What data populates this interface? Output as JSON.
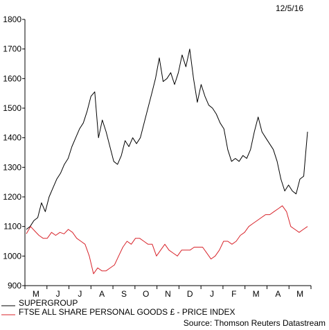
{
  "chart_data": {
    "type": "line",
    "date_label": "12/5/16",
    "source": "Source: Thomson Reuters Datastream",
    "x_ticks": [
      "M",
      "J",
      "J",
      "A",
      "S",
      "O",
      "N",
      "D",
      "J",
      "F",
      "M",
      "A",
      "M"
    ],
    "y_ticks": [
      900,
      1000,
      1100,
      1200,
      1300,
      1400,
      1500,
      1600,
      1700,
      1800
    ],
    "ylim": [
      900,
      1800
    ],
    "grid": false,
    "legend_position": "bottom-left",
    "series": [
      {
        "name": "SUPERGROUP",
        "color": "#000000",
        "values": [
          1090,
          1100,
          1120,
          1130,
          1180,
          1150,
          1200,
          1230,
          1260,
          1280,
          1310,
          1330,
          1370,
          1400,
          1430,
          1450,
          1490,
          1540,
          1555,
          1400,
          1460,
          1420,
          1370,
          1320,
          1310,
          1340,
          1390,
          1370,
          1400,
          1380,
          1400,
          1450,
          1500,
          1550,
          1600,
          1670,
          1590,
          1600,
          1620,
          1580,
          1620,
          1680,
          1640,
          1700,
          1600,
          1520,
          1580,
          1540,
          1510,
          1500,
          1480,
          1450,
          1430,
          1360,
          1320,
          1330,
          1320,
          1340,
          1330,
          1360,
          1420,
          1470,
          1420,
          1400,
          1380,
          1360,
          1320,
          1260,
          1220,
          1240,
          1220,
          1210,
          1260,
          1270,
          1420
        ]
      },
      {
        "name": "FTSE ALL SHARE PERSONAL GOODS £ - PRICE INDEX",
        "color": "#d8232a",
        "values": [
          1075,
          1100,
          1085,
          1070,
          1060,
          1060,
          1080,
          1070,
          1080,
          1075,
          1090,
          1080,
          1060,
          1050,
          1040,
          1000,
          940,
          960,
          950,
          950,
          960,
          970,
          1000,
          1030,
          1050,
          1040,
          1060,
          1060,
          1050,
          1040,
          1040,
          1000,
          1020,
          1040,
          1020,
          1010,
          1000,
          1020,
          1020,
          1020,
          1030,
          1030,
          1030,
          1010,
          990,
          1000,
          1020,
          1050,
          1050,
          1040,
          1050,
          1070,
          1080,
          1100,
          1110,
          1120,
          1130,
          1140,
          1140,
          1150,
          1160,
          1170,
          1150,
          1100,
          1090,
          1080,
          1090,
          1100
        ]
      }
    ]
  }
}
